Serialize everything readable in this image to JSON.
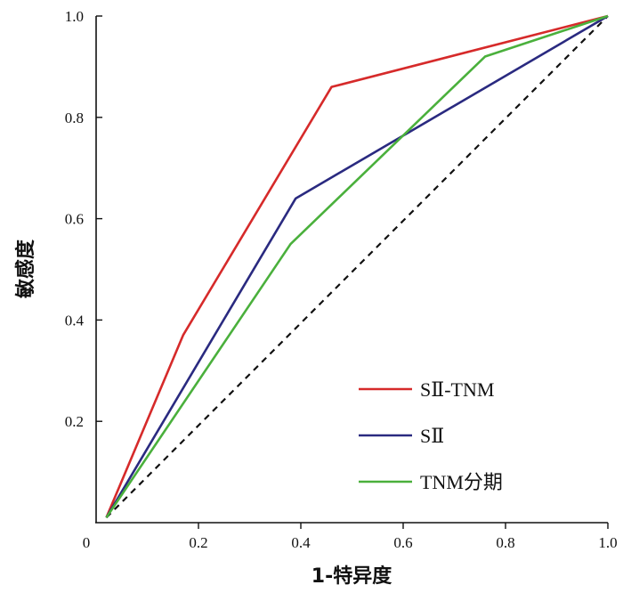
{
  "chart_data": {
    "type": "line",
    "xlabel": "1-特异度",
    "ylabel": "敏感度",
    "xlim": [
      0,
      1
    ],
    "ylim": [
      0,
      1
    ],
    "origin_label": "0",
    "x_ticks": [
      {
        "value": 0.2,
        "label": "0.2"
      },
      {
        "value": 0.4,
        "label": "0.4"
      },
      {
        "value": 0.6,
        "label": "0.6"
      },
      {
        "value": 0.8,
        "label": "0.8"
      },
      {
        "value": 1.0,
        "label": "1.0"
      }
    ],
    "y_ticks": [
      {
        "value": 0.2,
        "label": "0.2"
      },
      {
        "value": 0.4,
        "label": "0.4"
      },
      {
        "value": 0.6,
        "label": "0.6"
      },
      {
        "value": 0.8,
        "label": "0.8"
      },
      {
        "value": 1.0,
        "label": "1.0"
      }
    ],
    "grid": false,
    "legend_position": "bottom-right",
    "series": [
      {
        "name": "SⅡ-TNM",
        "color": "#d62a2a",
        "x": [
          0.02,
          0.17,
          0.46,
          1.0
        ],
        "y": [
          0.01,
          0.37,
          0.86,
          1.0
        ]
      },
      {
        "name": "SⅡ",
        "color": "#2a2a80",
        "x": [
          0.02,
          0.39,
          1.0
        ],
        "y": [
          0.01,
          0.64,
          1.0
        ]
      },
      {
        "name": "TNM分期",
        "color": "#4ab03c",
        "x": [
          0.02,
          0.38,
          0.76,
          1.0
        ],
        "y": [
          0.01,
          0.55,
          0.92,
          1.0
        ]
      }
    ],
    "reference_line": {
      "style": "dashed",
      "color": "#111111",
      "x": [
        0.02,
        1.0
      ],
      "y": [
        0.01,
        1.0
      ]
    }
  }
}
